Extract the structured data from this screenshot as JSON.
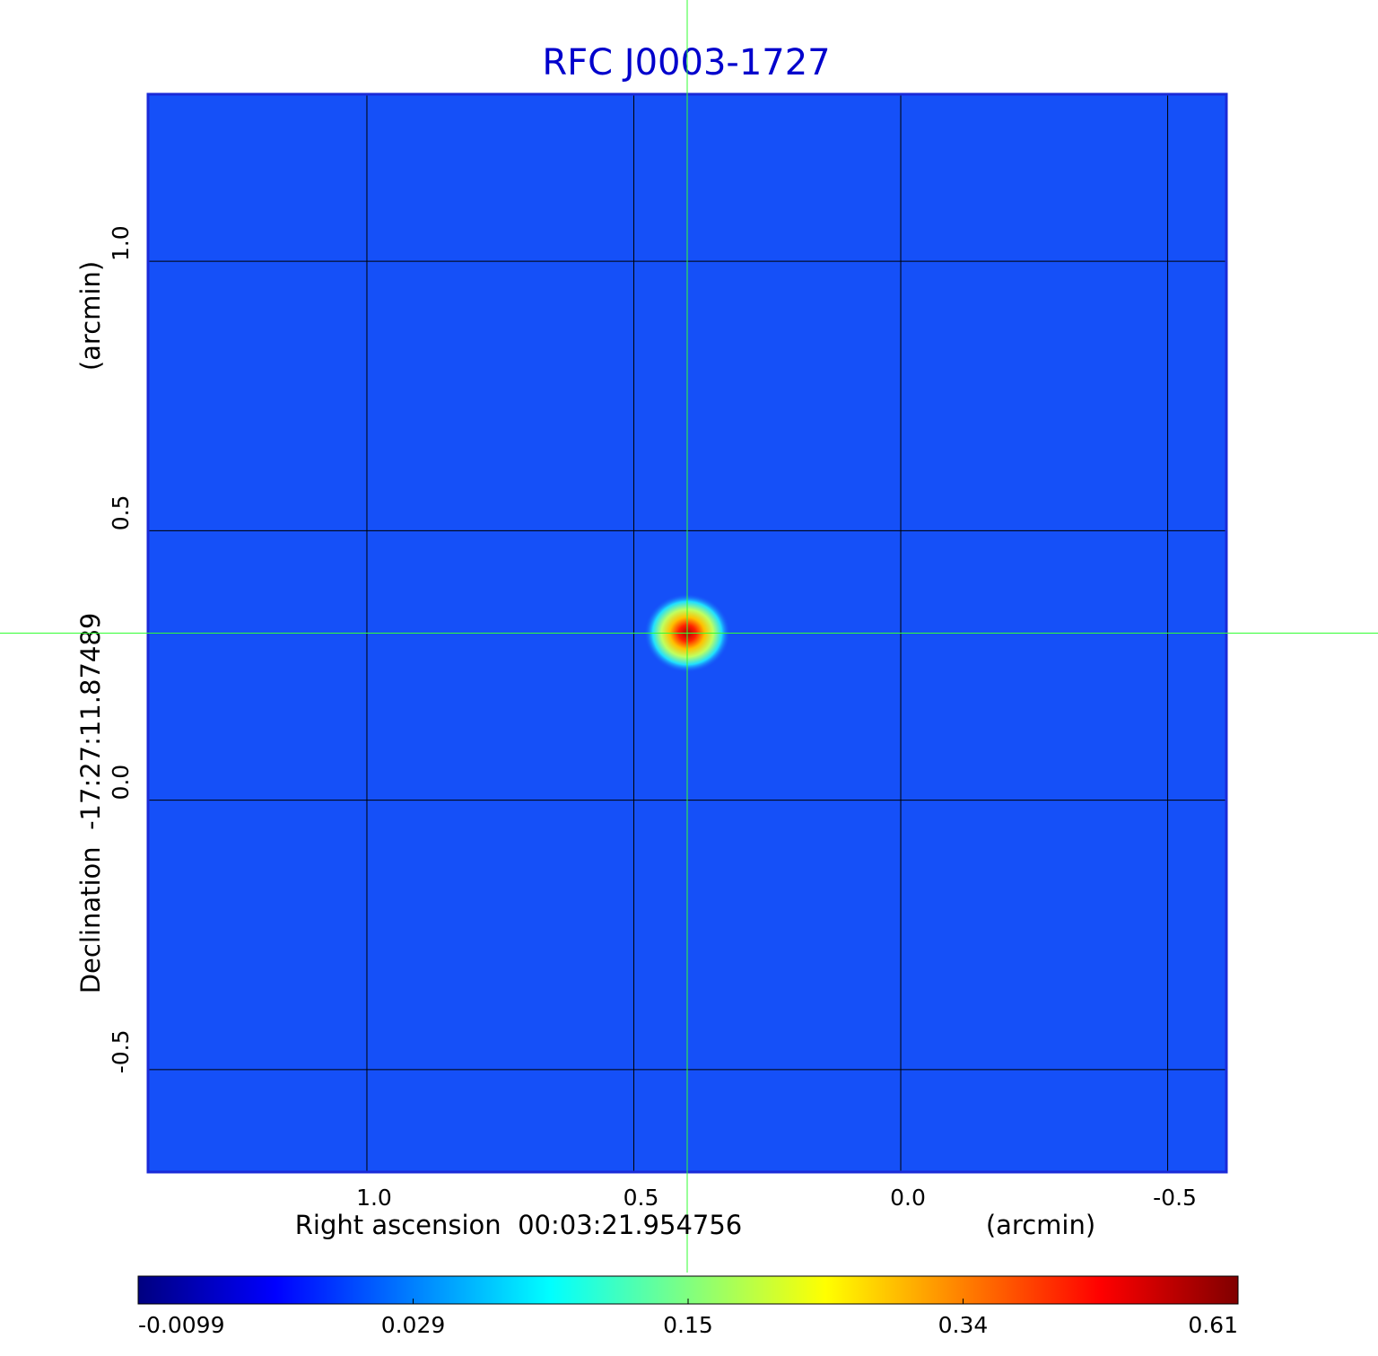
{
  "chart_data": {
    "type": "image",
    "title": "RFC J0003-1727",
    "xlabel": "Right ascension  00:03:21.954756",
    "xunit": "(arcmin)",
    "ylabel": "Declination  -17:27:11.87489",
    "yunit": "(arcmin)",
    "xlim": [
      1.41,
      -0.61
    ],
    "ylim": [
      -0.69,
      1.31
    ],
    "xticks": [
      {
        "value": 1,
        "label": "1.0"
      },
      0.5,
      {
        "value": 0,
        "label": "0.0"
      },
      -0.5
    ],
    "yticks": [
      {
        "value": 1,
        "label": "1.0"
      },
      0.5,
      {
        "value": 0,
        "label": "0.0"
      },
      -0.5
    ],
    "grid": true,
    "background_color": "#1550f8",
    "peak": {
      "x": 0.4,
      "y": 0.31
    },
    "colorbar": {
      "ticks": [
        -0.0099,
        0.029,
        0.15,
        0.34,
        0.61
      ],
      "colors": [
        "#000080",
        "#0000ff",
        "#0080ff",
        "#00ffff",
        "#80ff80",
        "#ffff00",
        "#ff8000",
        "#ff0000",
        "#800000"
      ]
    }
  }
}
